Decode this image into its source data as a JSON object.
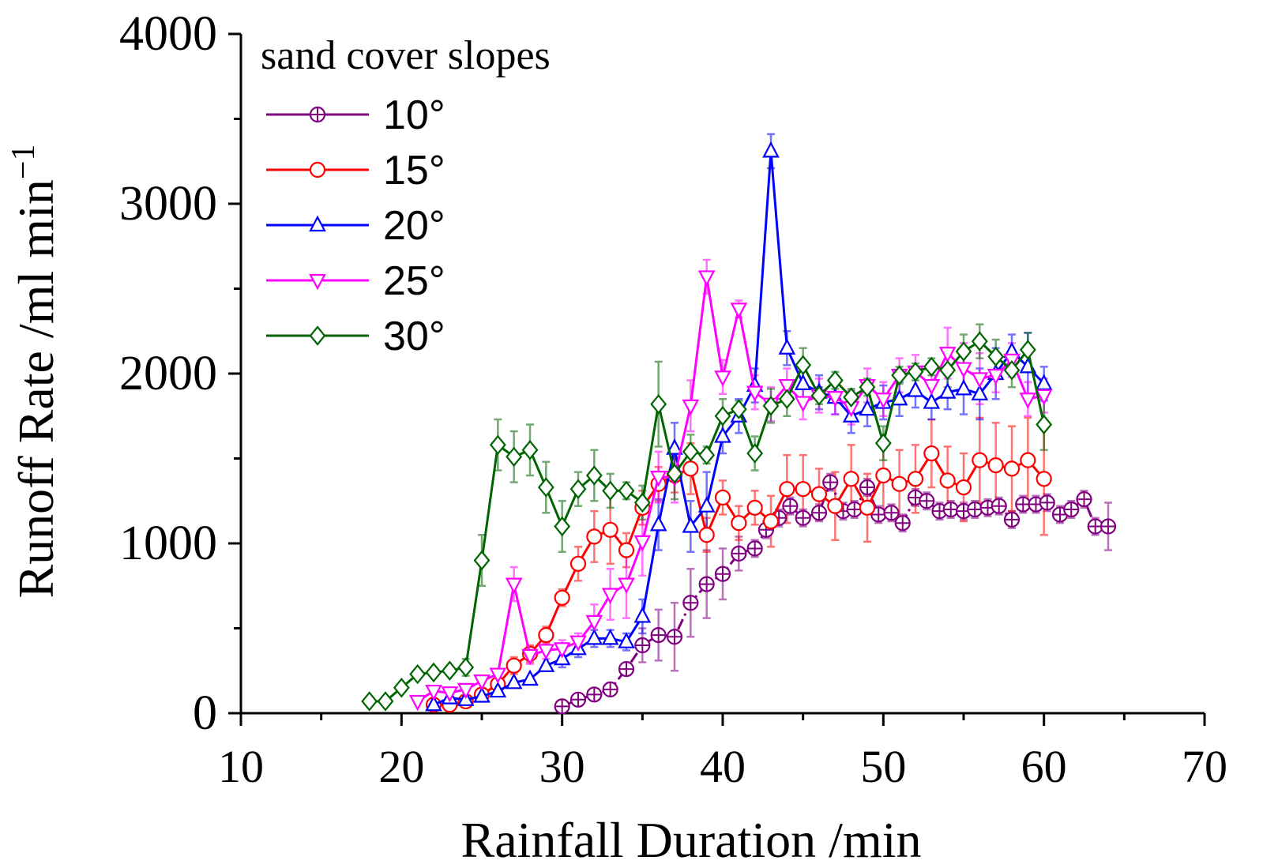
{
  "chart_data": {
    "type": "line",
    "title": "",
    "xlabel": "Rainfall Duration /min",
    "ylabel_main": "Runoff Rate /ml min",
    "ylabel_sup": "−1",
    "xlim": [
      10,
      70
    ],
    "ylim": [
      0,
      4000
    ],
    "xticks": [
      10,
      20,
      30,
      40,
      50,
      60,
      70
    ],
    "xtick_labels": [
      "10",
      "20",
      "30",
      "40",
      "50",
      "60",
      "70"
    ],
    "yticks": [
      0,
      1000,
      2000,
      3000,
      4000
    ],
    "ytick_labels": [
      "0",
      "1000",
      "2000",
      "3000",
      "4000"
    ],
    "legend_title": "sand cover slopes",
    "legend_position": "top-left",
    "series": [
      {
        "name": "10°",
        "color": "#800080",
        "marker": "circle-plus",
        "dashed": true,
        "x": [
          30,
          31,
          32,
          33,
          34,
          35,
          36,
          37,
          38,
          39,
          40,
          41,
          42,
          42.7,
          43.5,
          44.2,
          45,
          46,
          46.7,
          47.5,
          48.2,
          49,
          49.7,
          50.5,
          51.2,
          52,
          52.7,
          53.5,
          54.2,
          55,
          55.7,
          56.5,
          57.2,
          58,
          58.7,
          59.5,
          60.2,
          61,
          61.7,
          62.5,
          63.2,
          64
        ],
        "values": [
          40,
          80,
          110,
          140,
          260,
          400,
          460,
          450,
          650,
          760,
          820,
          940,
          970,
          1080,
          1150,
          1220,
          1150,
          1180,
          1360,
          1190,
          1200,
          1330,
          1170,
          1180,
          1120,
          1270,
          1250,
          1190,
          1200,
          1190,
          1200,
          1210,
          1220,
          1140,
          1230,
          1230,
          1240,
          1170,
          1200,
          1260,
          1100,
          1100
        ],
        "errors": [
          0,
          0,
          0,
          0,
          0,
          100,
          150,
          200,
          200,
          200,
          150,
          100,
          50,
          50,
          50,
          50,
          50,
          50,
          50,
          50,
          50,
          50,
          50,
          50,
          50,
          50,
          50,
          50,
          50,
          50,
          50,
          50,
          50,
          50,
          50,
          50,
          50,
          50,
          50,
          50,
          50,
          140
        ]
      },
      {
        "name": "15°",
        "color": "#ff0000",
        "marker": "circle",
        "dashed": false,
        "x": [
          22,
          23,
          24,
          25,
          26,
          27,
          28,
          29,
          30,
          31,
          32,
          33,
          34,
          35,
          36,
          37,
          38,
          39,
          40,
          41,
          42,
          43,
          44,
          45,
          46,
          47,
          48,
          49,
          50,
          51,
          52,
          53,
          54,
          55,
          56,
          57,
          58,
          59,
          60
        ],
        "values": [
          50,
          50,
          70,
          110,
          170,
          280,
          350,
          460,
          680,
          880,
          1040,
          1080,
          960,
          1210,
          1350,
          1400,
          1440,
          1050,
          1270,
          1120,
          1210,
          1130,
          1320,
          1320,
          1290,
          1220,
          1380,
          1210,
          1400,
          1350,
          1380,
          1530,
          1370,
          1330,
          1490,
          1460,
          1440,
          1490,
          1380
        ],
        "errors": [
          0,
          0,
          0,
          0,
          0,
          50,
          50,
          50,
          50,
          100,
          150,
          200,
          100,
          100,
          100,
          100,
          150,
          100,
          100,
          100,
          100,
          150,
          200,
          200,
          150,
          200,
          200,
          200,
          200,
          200,
          200,
          200,
          200,
          200,
          250,
          250,
          250,
          250,
          330
        ]
      },
      {
        "name": "20°",
        "color": "#0000ff",
        "marker": "triangle-up",
        "dashed": false,
        "x": [
          22,
          23,
          24,
          25,
          26,
          27,
          28,
          29,
          30,
          31,
          32,
          33,
          34,
          35,
          36,
          37,
          38,
          39,
          40,
          41,
          42,
          43,
          44,
          45,
          46,
          47,
          48,
          49,
          50,
          51,
          52,
          53,
          54,
          55,
          56,
          57,
          58,
          59,
          60
        ],
        "values": [
          50,
          90,
          80,
          100,
          130,
          180,
          200,
          280,
          320,
          380,
          440,
          440,
          420,
          570,
          1110,
          1560,
          1100,
          1220,
          1630,
          1750,
          1930,
          3310,
          2150,
          1940,
          1890,
          1860,
          1750,
          1790,
          1830,
          1850,
          1900,
          1830,
          1890,
          1910,
          1880,
          2000,
          2130,
          2040,
          1940
        ],
        "errors": [
          0,
          0,
          0,
          0,
          0,
          0,
          0,
          0,
          50,
          50,
          50,
          50,
          50,
          100,
          150,
          150,
          150,
          200,
          100,
          100,
          100,
          100,
          100,
          100,
          100,
          100,
          100,
          100,
          100,
          100,
          100,
          100,
          100,
          150,
          150,
          150,
          100,
          200,
          100
        ]
      },
      {
        "name": "25°",
        "color": "#ff00ff",
        "marker": "triangle-down",
        "dashed": false,
        "x": [
          21,
          22,
          23,
          24,
          25,
          26,
          27,
          28,
          29,
          30,
          31,
          32,
          33,
          34,
          35,
          36,
          37,
          38,
          39,
          40,
          41,
          42,
          43,
          44,
          45,
          46,
          47,
          48,
          49,
          50,
          51,
          52,
          53,
          54,
          55,
          56,
          57,
          58,
          59,
          60
        ],
        "values": [
          70,
          130,
          120,
          140,
          190,
          230,
          760,
          340,
          370,
          380,
          420,
          540,
          700,
          760,
          1010,
          1390,
          1390,
          1810,
          2570,
          1980,
          2380,
          1890,
          1820,
          1930,
          1830,
          1870,
          1860,
          1800,
          1930,
          1850,
          1990,
          2010,
          1930,
          2120,
          2030,
          1970,
          1990,
          2080,
          1850,
          1870
        ],
        "errors": [
          0,
          0,
          0,
          0,
          0,
          0,
          100,
          50,
          50,
          50,
          50,
          100,
          150,
          200,
          200,
          150,
          150,
          150,
          100,
          100,
          50,
          100,
          100,
          100,
          100,
          100,
          100,
          100,
          100,
          100,
          100,
          100,
          100,
          150,
          150,
          150,
          100,
          100,
          100,
          100
        ]
      },
      {
        "name": "30°",
        "color": "#006400",
        "marker": "diamond",
        "dashed": false,
        "x": [
          18,
          19,
          20,
          21,
          22,
          23,
          24,
          25,
          26,
          27,
          28,
          29,
          30,
          31,
          32,
          33,
          34,
          35,
          36,
          37,
          38,
          39,
          40,
          41,
          42,
          43,
          44,
          45,
          46,
          47,
          48,
          49,
          50,
          51,
          52,
          53,
          54,
          55,
          56,
          57,
          58,
          59,
          60
        ],
        "values": [
          70,
          70,
          150,
          230,
          240,
          250,
          270,
          900,
          1580,
          1510,
          1550,
          1330,
          1100,
          1320,
          1400,
          1310,
          1310,
          1240,
          1820,
          1410,
          1540,
          1520,
          1750,
          1790,
          1530,
          1810,
          1850,
          2050,
          1870,
          1960,
          1860,
          1920,
          1590,
          1990,
          2010,
          2040,
          2020,
          2130,
          2190,
          2100,
          2020,
          2140,
          1700
        ],
        "errors": [
          0,
          0,
          0,
          0,
          0,
          0,
          50,
          150,
          150,
          150,
          150,
          150,
          150,
          100,
          150,
          100,
          50,
          100,
          250,
          150,
          100,
          50,
          100,
          50,
          100,
          100,
          100,
          100,
          50,
          50,
          50,
          50,
          100,
          50,
          50,
          50,
          100,
          100,
          100,
          100,
          100,
          100,
          150
        ]
      }
    ]
  }
}
